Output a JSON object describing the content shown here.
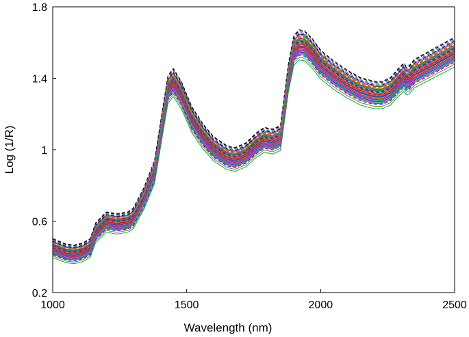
{
  "chart_data": {
    "type": "line",
    "xlabel": "Wavelength (nm)",
    "ylabel": "Log (1/R)",
    "xlim": [
      1000,
      2500
    ],
    "ylim": [
      0.2,
      1.8
    ],
    "x_ticks": [
      "1000",
      "1500",
      "2000",
      "2500"
    ],
    "y_ticks": [
      "0.2",
      "0.6",
      "1",
      "1.4",
      "1.8"
    ],
    "grid": false,
    "legend": "none",
    "x": [
      1000,
      1050,
      1080,
      1110,
      1140,
      1160,
      1200,
      1240,
      1280,
      1300,
      1340,
      1380,
      1410,
      1430,
      1450,
      1480,
      1520,
      1560,
      1600,
      1650,
      1680,
      1720,
      1760,
      1790,
      1820,
      1850,
      1880,
      1900,
      1920,
      1940,
      1970,
      2000,
      2050,
      2100,
      2150,
      2200,
      2230,
      2260,
      2290,
      2310,
      2320,
      2330,
      2350,
      2400,
      2450,
      2500
    ],
    "reference_values": [
      0.445,
      0.415,
      0.41,
      0.42,
      0.445,
      0.53,
      0.59,
      0.58,
      0.59,
      0.61,
      0.72,
      0.87,
      1.15,
      1.33,
      1.37,
      1.3,
      1.16,
      1.07,
      1.0,
      0.95,
      0.94,
      0.965,
      1.02,
      1.05,
      1.04,
      1.06,
      1.4,
      1.55,
      1.58,
      1.575,
      1.53,
      1.47,
      1.41,
      1.36,
      1.32,
      1.3,
      1.3,
      1.32,
      1.37,
      1.4,
      1.38,
      1.385,
      1.42,
      1.46,
      1.5,
      1.54
    ],
    "series_count": 40,
    "series_offsets": [
      -0.068,
      -0.04,
      -0.028,
      -0.015,
      -0.006,
      0.006,
      0.016,
      0.028,
      0.038,
      0.052,
      0.065,
      0.075,
      -0.055,
      -0.033,
      -0.021,
      -0.009,
      0.0,
      0.011,
      0.022,
      0.033,
      0.045,
      0.058,
      -0.045,
      -0.025,
      -0.012,
      0.003,
      0.014,
      0.025,
      0.042,
      0.06,
      -0.035,
      -0.018,
      -0.003,
      0.009,
      0.019,
      0.031,
      0.048,
      0.068,
      0.08,
      0.003
    ],
    "series_colors": [
      "#00a85a",
      "#e8197a",
      "#0000cc",
      "#ff7f00",
      "#7f00ff",
      "#00b3b3",
      "#cc0000",
      "#009900",
      "#b30086",
      "#666600",
      "#3399ff",
      "#000000",
      "#808000",
      "#ff3399",
      "#0066cc",
      "#ff9900",
      "#990099",
      "#33cc33",
      "#cc3300",
      "#006699",
      "#996633",
      "#cc00cc",
      "#1a1aff",
      "#00cccc",
      "#993300",
      "#339966",
      "#ff6666",
      "#6600cc",
      "#999900",
      "#000080",
      "#00b050",
      "#ff00ff",
      "#0070c0",
      "#c00000",
      "#7030a0",
      "#00a0a0",
      "#e46c0a",
      "#4f81bd",
      "#000000",
      "#c0504d"
    ],
    "dashed_series": [
      5,
      10,
      11,
      15,
      20,
      22,
      27,
      29,
      34,
      36,
      37,
      38
    ]
  }
}
